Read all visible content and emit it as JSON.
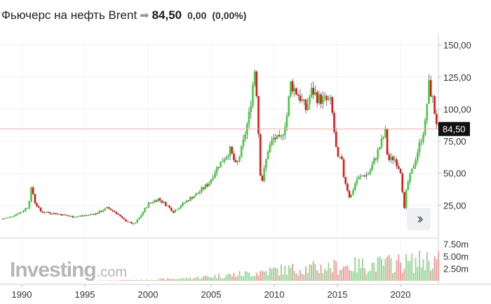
{
  "header": {
    "title": "Фьючерс на нефть Brent",
    "arrow_icon": "arrow-right-icon",
    "price": "84,50",
    "change": "0,00",
    "change_pct": "(0,00%)"
  },
  "watermark": {
    "brand": "Investing",
    "suffix": ".com"
  },
  "nav_button": {
    "icon": "double-chevron-right-icon"
  },
  "colors": {
    "up": "#3ecf3e",
    "down": "#e01414",
    "price_line": "#f2a8a8",
    "price_tag": "#111111",
    "vol_up": "#9cd69c",
    "vol_down": "#f0a0a0"
  },
  "chart_data": {
    "type": "line",
    "title": "Фьючерс на нефть Brent",
    "series": [
      {
        "x": [
          1988.5,
          1989,
          1989.5,
          1990,
          1990.5,
          1990.8,
          1991,
          1991.5,
          1992,
          1993,
          1994,
          1995,
          1996,
          1996.8,
          1997.5,
          1998,
          1998.9,
          1999.5,
          2000,
          2000.8,
          2001.5,
          2002,
          2003,
          2004,
          2004.8,
          2005.5,
          2006.5,
          2007,
          2007.5,
          2008,
          2008.5,
          2008.9,
          2009,
          2009.5,
          2010,
          2010.5,
          2011,
          2011.3,
          2012,
          2012.5,
          2013,
          2013.5,
          2014,
          2014.5,
          2015,
          2015.3,
          2015.5,
          2016,
          2016.5,
          2017,
          2017.5,
          2018,
          2018.8,
          2019,
          2019.5,
          2020,
          2020.3,
          2020.5,
          2021,
          2021.5,
          2022,
          2022.2,
          2022.5,
          2022.8,
          2023
        ],
        "y": [
          14.5,
          15.5,
          18,
          20,
          24,
          40,
          28,
          20,
          19.5,
          18,
          16,
          17,
          19,
          23,
          19,
          14,
          10,
          18,
          26,
          30,
          25,
          20,
          28,
          35,
          42,
          55,
          68,
          55,
          72,
          95,
          135,
          50,
          42,
          68,
          78,
          75,
          95,
          120,
          110,
          100,
          115,
          108,
          107,
          105,
          60,
          62,
          48,
          30,
          45,
          48,
          50,
          62,
          82,
          60,
          62,
          52,
          22,
          40,
          55,
          72,
          90,
          120,
          110,
          92,
          84.5
        ]
      }
    ],
    "volume_series": [
      {
        "x": [
          1988,
          1995,
          2000,
          2003,
          2005,
          2008,
          2010,
          2012,
          2014,
          2016,
          2018,
          2020,
          2021,
          2022,
          2023
        ],
        "y": [
          0,
          0,
          0.25,
          0.6,
          1.1,
          1.8,
          2.6,
          3.0,
          3.3,
          3.7,
          4.0,
          4.5,
          4.5,
          5.2,
          5.0
        ]
      }
    ],
    "last_value": "84,50",
    "x_ticks": [
      "1990",
      "1995",
      "2000",
      "2005",
      "2010",
      "2015",
      "2020"
    ],
    "x_tick_values": [
      1990,
      1995,
      2000,
      2005,
      2010,
      2015,
      2020
    ],
    "y_ticks": [
      "25,00",
      "50,00",
      "75,00",
      "100,00",
      "125,00",
      "150,00"
    ],
    "y_tick_values": [
      25,
      50,
      75,
      100,
      125,
      150
    ],
    "volume_ticks": [
      "2.50m",
      "5.00m",
      "7.50m"
    ],
    "volume_tick_values": [
      2.5,
      5,
      7.5
    ],
    "xlim": [
      1988.5,
      2023.0
    ],
    "ylim": [
      0,
      155
    ],
    "volume_ylim": [
      0,
      8.3
    ],
    "grid": true
  }
}
